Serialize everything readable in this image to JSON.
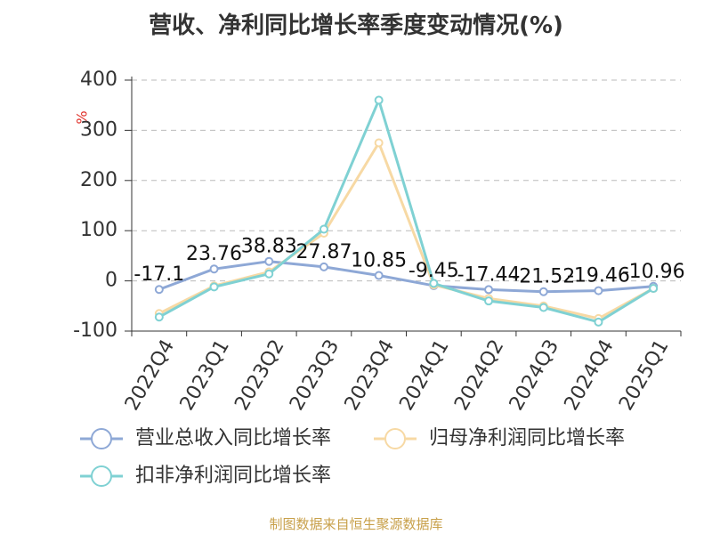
{
  "title": "营收、净利同比增长率季度变动情况(%)",
  "source": "制图数据来自恒生聚源数据库",
  "chart_data": {
    "type": "line",
    "title": "营收、净利同比增长率季度变动情况(%)",
    "ylabel": "%",
    "ylim": [
      -100,
      400
    ],
    "yticks": [
      400,
      300,
      200,
      100,
      0,
      -100
    ],
    "grid": true,
    "legend_position": "bottom-left",
    "categories": [
      "2022Q4",
      "2023Q1",
      "2023Q2",
      "2023Q3",
      "2023Q4",
      "2024Q1",
      "2024Q2",
      "2024Q3",
      "2024Q4",
      "2025Q1"
    ],
    "series": [
      {
        "name": "营业总收入同比增长率",
        "color": "#8ea8d6",
        "values": [
          -17.1,
          23.76,
          38.83,
          27.87,
          10.85,
          -9.45,
          -17.44,
          -21.52,
          -19.46,
          -10.96
        ],
        "labels": [
          "-17.1",
          "23.76",
          "38.83",
          "27.87",
          "10.85",
          "-9.45",
          "-17.44",
          "-21.52",
          "-19.46",
          "-10.96"
        ]
      },
      {
        "name": "归母净利润同比增长率",
        "color": "#f7d9a4",
        "values": [
          -65,
          -10,
          18,
          95,
          275,
          -8,
          -35,
          -50,
          -75,
          -15
        ]
      },
      {
        "name": "扣非净利润同比增长率",
        "color": "#7fd1d3",
        "values": [
          -72,
          -12,
          14,
          103,
          360,
          -5,
          -40,
          -53,
          -82,
          -15
        ]
      }
    ]
  }
}
